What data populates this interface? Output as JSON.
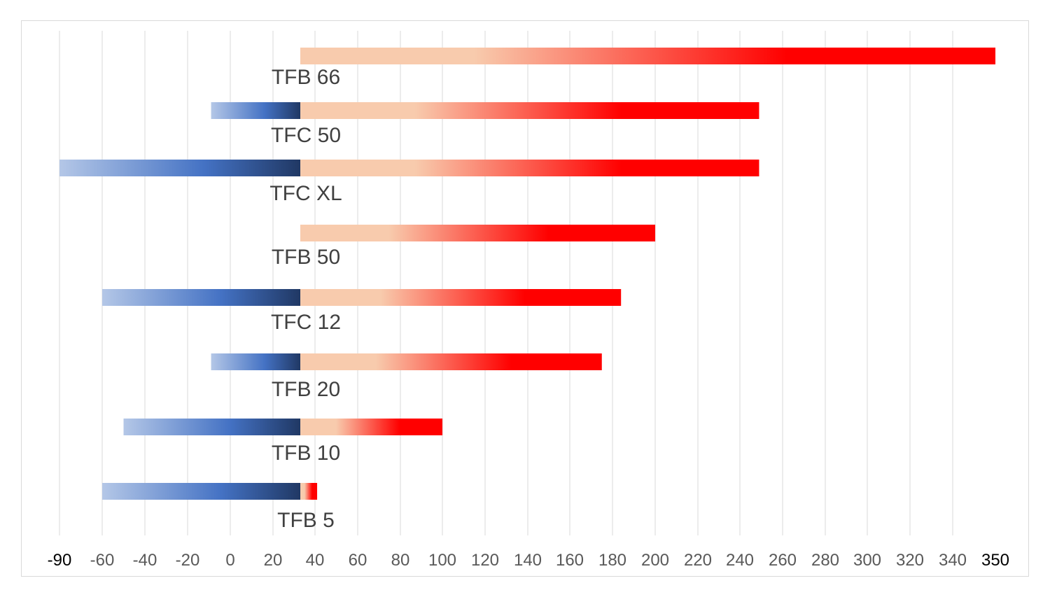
{
  "chart_data": {
    "type": "bar",
    "orientation": "horizontal",
    "title": "",
    "xlabel": "",
    "ylabel": "",
    "xlim": [
      -90,
      350
    ],
    "xticks": [
      -90,
      -60,
      -40,
      -20,
      0,
      20,
      40,
      60,
      80,
      100,
      120,
      140,
      160,
      180,
      200,
      220,
      240,
      260,
      280,
      300,
      320,
      340,
      350
    ],
    "grid": true,
    "legend": "none",
    "baseline": 33,
    "categories": [
      "TFB 66",
      "TFC 50",
      "TFC XL",
      "TFB 50",
      "TFC 12",
      "TFB 20",
      "TFB 10",
      "TFB 5"
    ],
    "series": [
      {
        "values": [
          33,
          -9,
          -90,
          33,
          -60,
          -9,
          -50,
          -60
        ],
        "colors": [
          "#b4c7e7",
          "#4472c4",
          "#203864"
        ]
      },
      {
        "values": [
          350,
          249,
          249,
          200,
          184,
          175,
          100,
          41
        ],
        "colors": [
          "#f8cbad",
          "#f8cbad",
          "#ff0000",
          "#ff0000"
        ]
      }
    ]
  }
}
